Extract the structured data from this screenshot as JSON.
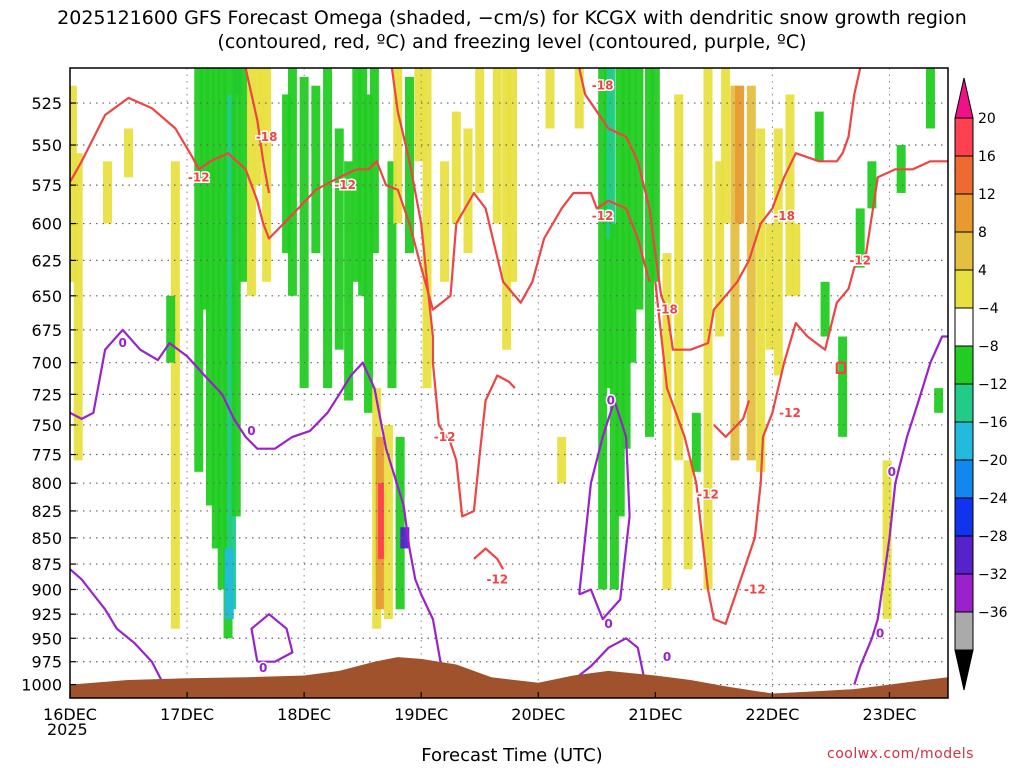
{
  "chart_data": {
    "type": "heatmap",
    "title": "2025121600 GFS Forecast Omega (shaded, −cm/s) for KCGX with dendritic snow growth region (contoured, red, ºC) and freezing level (contoured, purple, ºC)",
    "xlabel": "Forecast Time (UTC)",
    "x_ticks": [
      "16DEC",
      "17DEC",
      "18DEC",
      "19DEC",
      "20DEC",
      "21DEC",
      "22DEC",
      "23DEC"
    ],
    "x_tick_sublabel": "2025",
    "y_ticks": [
      525,
      550,
      575,
      600,
      625,
      650,
      675,
      700,
      725,
      750,
      775,
      800,
      825,
      850,
      875,
      900,
      925,
      950,
      975,
      1000
    ],
    "ylim": [
      1015,
      505
    ],
    "xlim_days": [
      16.0,
      23.5
    ],
    "grid": true,
    "colorbar": {
      "labels": [
        "20",
        "16",
        "12",
        "8",
        "4",
        "−4",
        "−8",
        "−12",
        "−16",
        "−20",
        "−24",
        "−28",
        "−32",
        "−36"
      ],
      "colors": [
        "#ff4050",
        "#ee6a30",
        "#e89a30",
        "#e4c040",
        "#e8e040",
        "#ffffff",
        "#22cc22",
        "#22cc88",
        "#22bbdd",
        "#1188ee",
        "#1133ee",
        "#5522cc",
        "#9922cc",
        "#aaaaaa"
      ],
      "top_color": "#ee1188",
      "bottom_color": "#000000"
    },
    "contour_labels": {
      "dendritic": [
        "-12",
        "-18"
      ],
      "freezing": [
        "0"
      ]
    },
    "colors": {
      "dendritic_contour": "#ee4444",
      "freezing_contour": "#9922cc",
      "terrain": "#a0522d"
    }
  },
  "credit": "coolwx.com/models"
}
